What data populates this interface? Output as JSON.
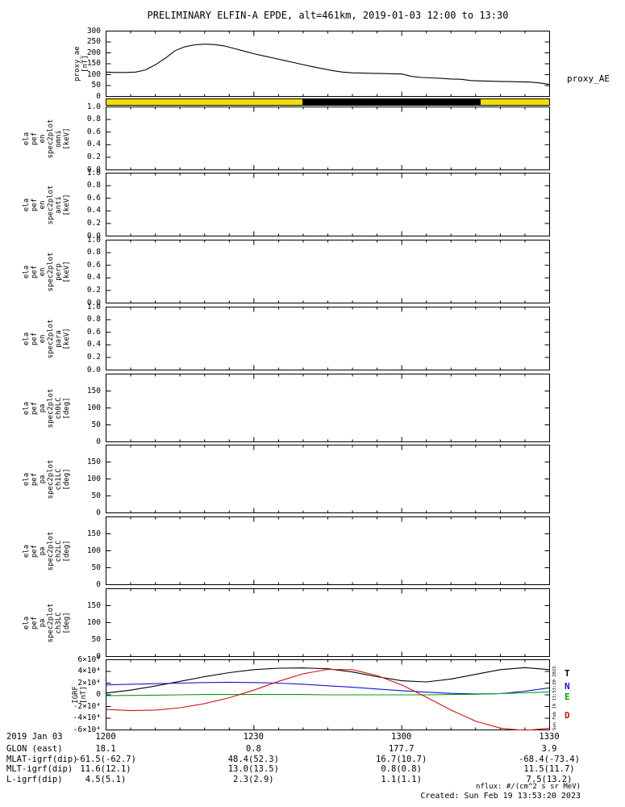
{
  "header": {
    "title": "PRELIMINARY ELFIN-A EPDE, alt=461km, 2019-01-03 12:00 to 13:30"
  },
  "time_axis": {
    "tick_labels": [
      "1200",
      "1230",
      "1300",
      "1330"
    ],
    "tick_minutes": [
      0,
      30,
      60,
      90
    ],
    "duration_minutes": 90
  },
  "status_bar": {
    "base_color": "#f0e000",
    "segments": [
      {
        "start": 0.443,
        "end": 0.846,
        "color": "#000000"
      }
    ]
  },
  "panels": [
    {
      "id": "proxy_ae",
      "ylabel_lines": [
        "proxy_ae",
        "[nT]"
      ],
      "ylim": [
        0,
        300
      ],
      "ytick_labels": [
        "300",
        "250",
        "200",
        "150",
        "100",
        "50",
        "0"
      ],
      "ytick_values": [
        300,
        250,
        200,
        150,
        100,
        50,
        0
      ],
      "right_label": "proxy_AE"
    },
    {
      "id": "en_omni",
      "ylabel_lines": [
        "ela",
        "pef",
        "en",
        "spec2plot",
        "omni",
        "[keV]"
      ],
      "ylim": [
        0,
        1
      ],
      "ytick_labels": [
        "1.0",
        "0.8",
        "0.6",
        "0.4",
        "0.2",
        "0.0"
      ],
      "ytick_values": [
        1,
        0.8,
        0.6,
        0.4,
        0.2,
        0
      ]
    },
    {
      "id": "en_anti",
      "ylabel_lines": [
        "ela",
        "pef",
        "en",
        "spec2plot",
        "anti",
        "[keV]"
      ],
      "ylim": [
        0,
        1
      ],
      "ytick_labels": [
        "1.0",
        "0.8",
        "0.6",
        "0.4",
        "0.2",
        "0.0"
      ],
      "ytick_values": [
        1,
        0.8,
        0.6,
        0.4,
        0.2,
        0
      ]
    },
    {
      "id": "en_perp",
      "ylabel_lines": [
        "ela",
        "pef",
        "en",
        "spec2plot",
        "perp",
        "[keV]"
      ],
      "ylim": [
        0,
        1
      ],
      "ytick_labels": [
        "1.0",
        "0.8",
        "0.6",
        "0.4",
        "0.2",
        "0.0"
      ],
      "ytick_values": [
        1,
        0.8,
        0.6,
        0.4,
        0.2,
        0
      ]
    },
    {
      "id": "en_para",
      "ylabel_lines": [
        "ela",
        "pef",
        "en",
        "spec2plot",
        "para",
        "[keV]"
      ],
      "ylim": [
        0,
        1
      ],
      "ytick_labels": [
        "1.0",
        "0.8",
        "0.6",
        "0.4",
        "0.2",
        "0.0"
      ],
      "ytick_values": [
        1,
        0.8,
        0.6,
        0.4,
        0.2,
        0
      ]
    },
    {
      "id": "pa_ch0lc",
      "ylabel_lines": [
        "ela",
        "pef",
        "pa",
        "spec2plot",
        "ch0LC",
        "[deg]"
      ],
      "ylim": [
        0,
        200
      ],
      "ytick_labels": [
        "150",
        "100",
        "50",
        "0"
      ],
      "ytick_values": [
        150,
        100,
        50,
        0
      ]
    },
    {
      "id": "pa_ch1lc",
      "ylabel_lines": [
        "ela",
        "pef",
        "pa",
        "spec2plot",
        "ch1LC",
        "[deg]"
      ],
      "ylim": [
        0,
        200
      ],
      "ytick_labels": [
        "150",
        "100",
        "50",
        "0"
      ],
      "ytick_values": [
        150,
        100,
        50,
        0
      ]
    },
    {
      "id": "pa_ch2lc",
      "ylabel_lines": [
        "ela",
        "pef",
        "pa",
        "spec2plot",
        "ch2LC",
        "[deg]"
      ],
      "ylim": [
        0,
        200
      ],
      "ytick_labels": [
        "150",
        "100",
        "50",
        "0"
      ],
      "ytick_values": [
        150,
        100,
        50,
        0
      ]
    },
    {
      "id": "pa_ch3lc",
      "ylabel_lines": [
        "ela",
        "pef",
        "pa",
        "spec2plot",
        "ch3LC",
        "[deg]"
      ],
      "ylim": [
        0,
        200
      ],
      "ytick_labels": [
        "150",
        "100",
        "50",
        "0"
      ],
      "ytick_values": [
        150,
        100,
        50,
        0
      ]
    },
    {
      "id": "igrf",
      "ylabel_lines": [
        "IGRF",
        "[nT]"
      ],
      "ylim": [
        -60000,
        60000
      ],
      "ytick_labels": [
        "6×10⁴",
        "4×10⁴",
        "2×10⁴",
        "0",
        "-2×10⁴",
        "-4×10⁴",
        "-6×10⁴"
      ],
      "ytick_values": [
        60000,
        40000,
        20000,
        0,
        -20000,
        -40000,
        -60000
      ],
      "series_letters": [
        {
          "label": "T",
          "color": "#000000"
        },
        {
          "label": "N",
          "color": "#1414cc"
        },
        {
          "label": "E",
          "color": "#00a000"
        },
        {
          "label": "D",
          "color": "#cc1414"
        }
      ]
    }
  ],
  "chart_data": [
    {
      "id": "proxy_ae",
      "type": "line",
      "title": "proxy_AE",
      "ylabel": "proxy_ae [nT]",
      "xlabel": "UT 2019-01-03 12:00 to 13:30",
      "ylim": [
        0,
        300
      ],
      "color": "#000000",
      "x_minutes": [
        0,
        2,
        4,
        6,
        8,
        10,
        12,
        14,
        16,
        18,
        20,
        22,
        24,
        26,
        28,
        30,
        32,
        34,
        36,
        38,
        40,
        42,
        44,
        46,
        48,
        50,
        52,
        54,
        56,
        58,
        60,
        62,
        64,
        66,
        68,
        70,
        72,
        74,
        76,
        78,
        80,
        82,
        84,
        86,
        88,
        90
      ],
      "values": [
        112,
        110,
        110,
        112,
        122,
        145,
        175,
        210,
        228,
        237,
        240,
        238,
        232,
        220,
        208,
        196,
        186,
        176,
        166,
        156,
        146,
        136,
        127,
        118,
        112,
        108,
        107,
        106,
        105,
        104,
        103,
        92,
        87,
        85,
        83,
        80,
        79,
        73,
        71,
        70,
        69,
        68,
        67,
        66,
        62,
        55
      ]
    },
    {
      "id": "igrf",
      "type": "line",
      "title": "IGRF magnetic field components",
      "ylabel": "IGRF [nT]",
      "xlabel": "UT 2019-01-03 12:00 to 13:30",
      "ylim": [
        -60000,
        60000
      ],
      "x_minutes": [
        0,
        5,
        10,
        15,
        20,
        25,
        30,
        35,
        40,
        45,
        50,
        55,
        60,
        65,
        70,
        75,
        80,
        85,
        90
      ],
      "series": [
        {
          "name": "T",
          "color": "#000000",
          "values": [
            3000,
            8000,
            15000,
            23000,
            31000,
            38000,
            43000,
            45500,
            46000,
            44500,
            39000,
            31000,
            24000,
            22000,
            27000,
            35000,
            43000,
            46500,
            43000
          ]
        },
        {
          "name": "N",
          "color": "#1414cc",
          "values": [
            17000,
            18000,
            19000,
            20000,
            21000,
            21500,
            21000,
            20000,
            18000,
            15500,
            13000,
            10000,
            7000,
            4500,
            2500,
            1500,
            2000,
            6000,
            12000
          ]
        },
        {
          "name": "E",
          "color": "#00a000",
          "values": [
            -1500,
            -1000,
            -500,
            0,
            500,
            500,
            500,
            500,
            500,
            0,
            0,
            0,
            0,
            0,
            500,
            1000,
            2000,
            3500,
            5000
          ]
        },
        {
          "name": "D",
          "color": "#cc1414",
          "values": [
            -25000,
            -27000,
            -26000,
            -22000,
            -15000,
            -5000,
            8000,
            23000,
            36000,
            43500,
            43000,
            33000,
            17000,
            -4000,
            -26000,
            -45000,
            -57000,
            -61000,
            -57000
          ]
        }
      ]
    }
  ],
  "annotations": {
    "date_label": "2019 Jan 03",
    "rows": [
      {
        "label": "GLON (east)",
        "values": [
          "18.1",
          "0.8",
          "177.7",
          "3.9"
        ]
      },
      {
        "label": "MLAT-igrf(dip)",
        "values": [
          "-61.5(-62.7)",
          "48.4(52.3)",
          "16.7(10.7)",
          "-68.4(-73.4)"
        ]
      },
      {
        "label": "MLT-igrf(dip)",
        "values": [
          "11.6(12.1)",
          "13.0(13.5)",
          "0.8(0.8)",
          "11.5(11.7)"
        ]
      },
      {
        "label": "L-igrf(dip)",
        "values": [
          "4.5(5.1)",
          "2.3(2.9)",
          "1.1(1.1)",
          "7.5(13.2)"
        ]
      }
    ]
  },
  "footer": {
    "nflux": "nflux: #/(cm^2 s sr MeV)",
    "created": "Created: Sun Feb 19 13:53:20 2023"
  },
  "right_margin": {
    "vertical_timestamp": "Sun Feb 19 13:53:20 2023"
  }
}
